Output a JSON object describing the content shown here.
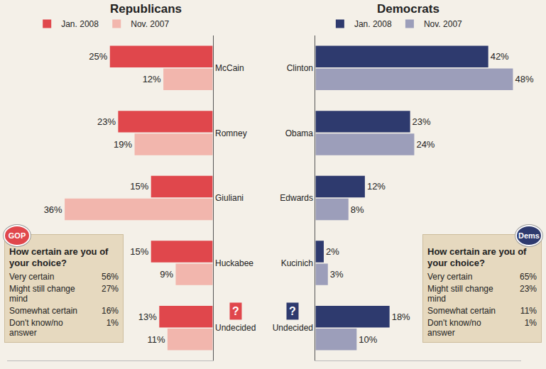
{
  "chart_data": [
    {
      "type": "bar",
      "title": "Republicans",
      "orientation": "horizontal",
      "categories": [
        "McCain",
        "Romney",
        "Giuliani",
        "Huckabee",
        "Undecided"
      ],
      "series": [
        {
          "name": "Jan. 2008",
          "color": "#e0474c",
          "values": [
            25,
            23,
            15,
            15,
            13
          ],
          "value_labels": [
            "25%",
            "23%",
            "15%",
            "15%",
            "13%"
          ]
        },
        {
          "name": "Nov. 2007",
          "color": "#f2b6ad",
          "values": [
            12,
            19,
            36,
            9,
            11
          ],
          "value_labels": [
            "12%",
            "19%",
            "36%",
            "9%",
            "11%"
          ]
        }
      ],
      "xlim": [
        50,
        0
      ],
      "data_labels": true,
      "tick_labels": "y",
      "grid": false,
      "legend": "top",
      "icons": {
        "Undecided": "?"
      },
      "badge": "GOP",
      "certainty": {
        "title": "How certain are you of your choice?",
        "rows": [
          [
            "Very certain",
            "56%"
          ],
          [
            "Might still change mind",
            "27%"
          ],
          [
            "Somewhat certain",
            "16%"
          ],
          [
            "Don't know/no answer",
            "1%"
          ]
        ]
      }
    },
    {
      "type": "bar",
      "title": "Democrats",
      "orientation": "horizontal",
      "categories": [
        "Clinton",
        "Obama",
        "Edwards",
        "Kucinich",
        "Undecided"
      ],
      "series": [
        {
          "name": "Jan. 2008",
          "color": "#2e3a6e",
          "values": [
            42,
            23,
            12,
            2,
            18
          ],
          "value_labels": [
            "42%",
            "23%",
            "12%",
            "2%",
            "18%"
          ]
        },
        {
          "name": "Nov. 2007",
          "color": "#9c9eba",
          "values": [
            48,
            24,
            8,
            3,
            10
          ],
          "value_labels": [
            "48%",
            "24%",
            "8%",
            "3%",
            "10%"
          ]
        }
      ],
      "xlim": [
        0,
        50
      ],
      "data_labels": true,
      "tick_labels": "y",
      "grid": false,
      "legend": "top",
      "icons": {
        "Undecided": "?"
      },
      "badge": "Dems",
      "certainty": {
        "title": "How certain are you of your choice?",
        "rows": [
          [
            "Very certain",
            "65%"
          ],
          [
            "Might still change mind",
            "23%"
          ],
          [
            "Somewhat certain",
            "11%"
          ],
          [
            "Don't know/no answer",
            "1%"
          ]
        ]
      }
    }
  ]
}
